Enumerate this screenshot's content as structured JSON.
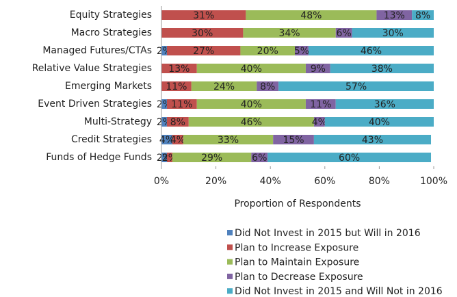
{
  "chart_data": {
    "type": "stacked-bar-horizontal",
    "xlabel": "Proportion of Respondents",
    "categories": [
      "Equity Strategies",
      "Macro Strategies",
      "Managed Futures/CTAs",
      "Relative Value Strategies",
      "Emerging Markets",
      "Event Driven Strategies",
      "Multi-Strategy",
      "Credit Strategies",
      "Funds of Hedge Funds"
    ],
    "series": [
      {
        "name": "Did Not Invest in 2015 but Will in 2016",
        "color": "#4f81bd",
        "values": [
          null,
          null,
          2,
          null,
          null,
          2,
          2,
          4,
          2
        ],
        "value_labels": [
          null,
          null,
          "2%",
          null,
          null,
          "2%",
          "2%",
          "4%",
          "2%"
        ]
      },
      {
        "name": "Plan to Increase Exposure",
        "color": "#c0504d",
        "values": [
          31,
          30,
          27,
          13,
          11,
          11,
          8,
          4,
          2
        ],
        "value_labels": [
          "31%",
          "30%",
          "27%",
          "13%",
          "11%",
          "11%",
          "8%",
          "4%",
          "2%"
        ]
      },
      {
        "name": "Plan to Maintain Exposure",
        "color": "#9bbb59",
        "values": [
          48,
          34,
          20,
          40,
          24,
          40,
          46,
          33,
          29
        ],
        "value_labels": [
          "48%",
          "34%",
          "20%",
          "40%",
          "24%",
          "40%",
          "46%",
          "33%",
          "29%"
        ]
      },
      {
        "name": "Plan to Decrease Exposure",
        "color": "#8064a2",
        "values": [
          13,
          6,
          5,
          9,
          8,
          11,
          4,
          15,
          6
        ],
        "value_labels": [
          "13%",
          "6%",
          "5%",
          "9%",
          "8%",
          "11%",
          "4%",
          "15%",
          "6%"
        ]
      },
      {
        "name": "Did Not Invest in 2015 and Will Not in 2016",
        "color": "#4bacc6",
        "values": [
          8,
          30,
          46,
          38,
          57,
          36,
          40,
          43,
          60
        ],
        "value_labels": [
          "8%",
          "30%",
          "46%",
          "38%",
          "57%",
          "36%",
          "40%",
          "43%",
          "60%"
        ]
      }
    ],
    "xlim": [
      0,
      100
    ],
    "xticks": [
      {
        "value": 0,
        "label": "0%"
      },
      {
        "value": 20,
        "label": "20%"
      },
      {
        "value": 40,
        "label": "40%"
      },
      {
        "value": 60,
        "label": "60%"
      },
      {
        "value": 80,
        "label": "80%"
      },
      {
        "value": 100,
        "label": "100%"
      }
    ],
    "legend": "bottom"
  }
}
